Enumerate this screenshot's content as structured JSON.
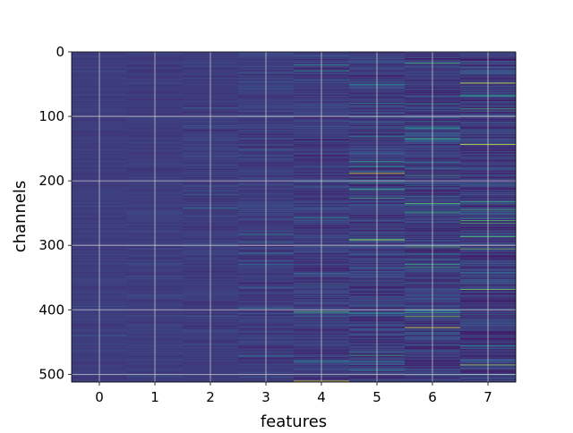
{
  "chart_data": {
    "type": "heatmap",
    "xlabel": "features",
    "ylabel": "channels",
    "x_ticks": [
      "0",
      "1",
      "2",
      "3",
      "4",
      "5",
      "6",
      "7"
    ],
    "y_ticks": [
      "0",
      "100",
      "200",
      "300",
      "400",
      "500"
    ],
    "columns": 8,
    "rows": 512,
    "xlim": [
      -0.5,
      7.5
    ],
    "ylim": [
      512,
      0
    ],
    "y_inverted": true,
    "grid": true,
    "colormap": "viridis",
    "colormap_stops": [
      "#44065a",
      "#3b528b",
      "#21908d",
      "#5dc963",
      "#fde725"
    ],
    "background_level": 0.18,
    "column_variance": [
      0.02,
      0.025,
      0.035,
      0.055,
      0.07,
      0.09,
      0.095,
      0.1
    ],
    "highlights": [
      {
        "feature": 4,
        "channel": 136,
        "value": 0.02
      },
      {
        "feature": 4,
        "channel": 403,
        "value": 0.7
      },
      {
        "feature": 4,
        "channel": 510,
        "value": 0.95
      },
      {
        "feature": 5,
        "channel": 188,
        "value": 0.95
      },
      {
        "feature": 5,
        "channel": 226,
        "value": 0.6
      },
      {
        "feature": 5,
        "channel": 291,
        "value": 0.9
      },
      {
        "feature": 5,
        "channel": 376,
        "value": 0.02
      },
      {
        "feature": 5,
        "channel": 470,
        "value": 0.6
      },
      {
        "feature": 6,
        "channel": 190,
        "value": 0.03
      },
      {
        "feature": 6,
        "channel": 235,
        "value": 0.75
      },
      {
        "feature": 6,
        "channel": 302,
        "value": 0.65
      },
      {
        "feature": 6,
        "channel": 410,
        "value": 0.8
      },
      {
        "feature": 6,
        "channel": 427,
        "value": 0.95
      },
      {
        "feature": 7,
        "channel": 48,
        "value": 0.95
      },
      {
        "feature": 7,
        "channel": 143,
        "value": 0.95
      },
      {
        "feature": 7,
        "channel": 261,
        "value": 0.7
      },
      {
        "feature": 7,
        "channel": 305,
        "value": 0.75
      },
      {
        "feature": 7,
        "channel": 368,
        "value": 0.8
      },
      {
        "feature": 7,
        "channel": 485,
        "value": 0.85
      }
    ]
  }
}
